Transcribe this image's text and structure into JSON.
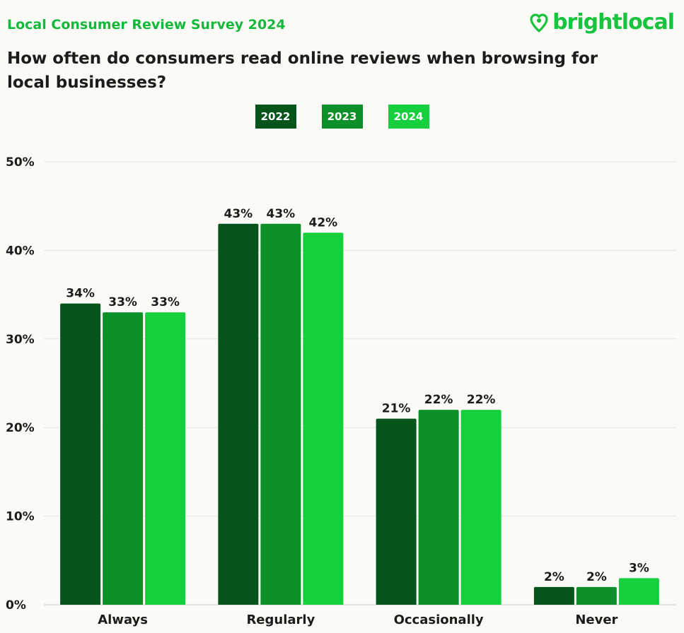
{
  "header": {
    "survey_title": "Local Consumer Review Survey 2024",
    "brand_name": "brightlocal",
    "question": "How often do consumers read online reviews when browsing for local businesses?"
  },
  "colors": {
    "series_2022": "#05541c",
    "series_2023": "#0d9029",
    "series_2024": "#15cf3c",
    "brand": "#18c33d",
    "gridline": "#e6e4dc"
  },
  "chart_data": {
    "type": "bar",
    "categories": [
      "Always",
      "Regularly",
      "Occasionally",
      "Never"
    ],
    "series": [
      {
        "name": "2022",
        "values": [
          34,
          43,
          21,
          2
        ]
      },
      {
        "name": "2023",
        "values": [
          33,
          43,
          22,
          2
        ]
      },
      {
        "name": "2024",
        "values": [
          33,
          42,
          22,
          3
        ]
      }
    ],
    "data_labels": [
      [
        "34%",
        "43%",
        "21%",
        "2%"
      ],
      [
        "33%",
        "43%",
        "22%",
        "2%"
      ],
      [
        "33%",
        "42%",
        "22%",
        "3%"
      ]
    ],
    "y_ticks": [
      0,
      10,
      20,
      30,
      40,
      50
    ],
    "y_tick_labels": [
      "0%",
      "10%",
      "20%",
      "30%",
      "40%",
      "50%"
    ],
    "ylim": [
      0,
      50
    ],
    "grid": true,
    "legend_position": "top-center"
  }
}
